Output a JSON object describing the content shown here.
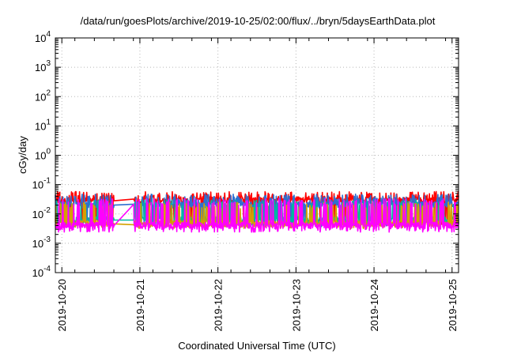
{
  "chart_data": {
    "type": "line",
    "title": "/data/run/goesPlots/archive/2019-10-25/02:00/flux/../bryn/5daysEarthData.plot",
    "xlabel": "Coordinated Universal Time (UTC)",
    "ylabel": "cGy/day",
    "yscale": "log",
    "ylim": [
      0.0001,
      10000
    ],
    "xlim": [
      "2019-10-19T22:00",
      "2019-10-25T02:00"
    ],
    "y_ticks": [
      {
        "value": 0.0001,
        "base": "10",
        "exp": "-4"
      },
      {
        "value": 0.001,
        "base": "10",
        "exp": "-3"
      },
      {
        "value": 0.01,
        "base": "10",
        "exp": "-2"
      },
      {
        "value": 0.1,
        "base": "10",
        "exp": "-1"
      },
      {
        "value": 1,
        "base": "10",
        "exp": "0"
      },
      {
        "value": 10,
        "base": "10",
        "exp": "1"
      },
      {
        "value": 100,
        "base": "10",
        "exp": "2"
      },
      {
        "value": 1000,
        "base": "10",
        "exp": "3"
      },
      {
        "value": 10000,
        "base": "10",
        "exp": "4"
      }
    ],
    "x_ticks": [
      "2019-10-20",
      "2019-10-21",
      "2019-10-22",
      "2019-10-23",
      "2019-10-24",
      "2019-10-25"
    ],
    "grid": true,
    "legend": "none",
    "colors": [
      "#ff0000",
      "#2f6fd0",
      "#00b7a0",
      "#d4a000",
      "#ff00ff"
    ],
    "gaps": [
      [
        "2019-10-20T16:00",
        "2019-10-20T22:00"
      ]
    ],
    "series": [
      {
        "color": "#ff0000",
        "base": 0.028,
        "spike_high": 0.058,
        "dip_low": 0.005
      },
      {
        "color": "#2f6fd0",
        "base": 0.02,
        "spike_high": 0.048,
        "dip_low": 0.005
      },
      {
        "color": "#00b7a0",
        "base": 0.0062,
        "spike_high": 0.03,
        "dip_low": 0.0045
      },
      {
        "color": "#d4a000",
        "base": 0.0046,
        "spike_high": 0.025,
        "dip_low": 0.004
      },
      {
        "color": "#ff00ff",
        "base": 0.004,
        "spike_high": 0.033,
        "dip_low": 0.003
      }
    ]
  }
}
